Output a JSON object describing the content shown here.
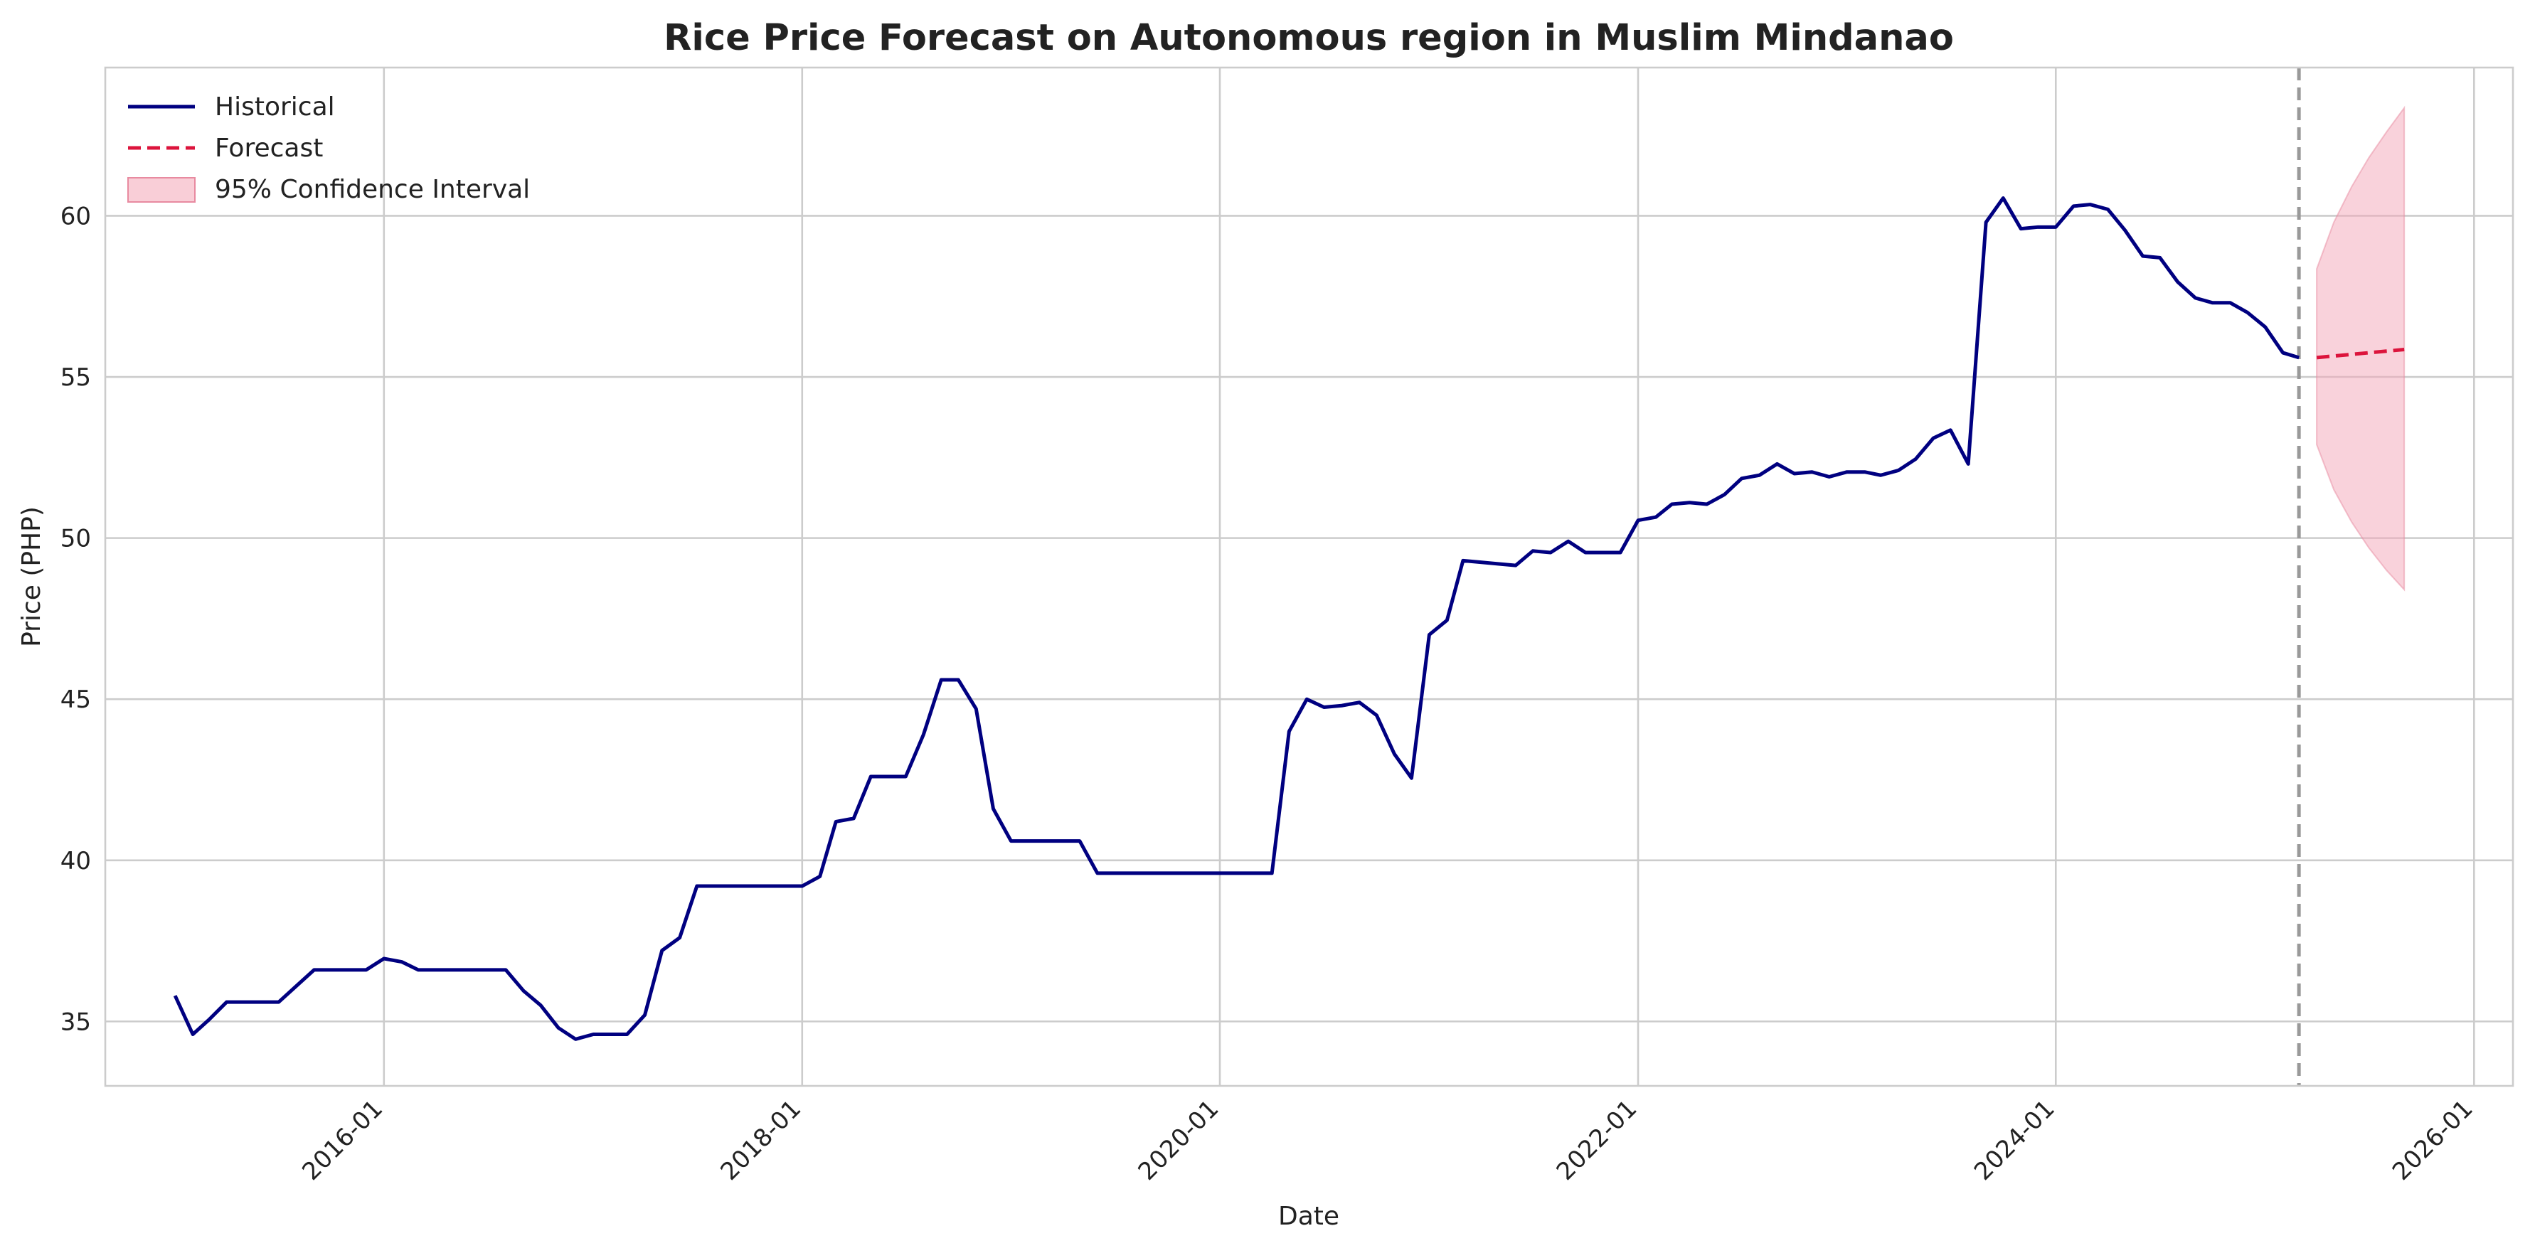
{
  "chart_data": {
    "type": "line",
    "title": "Rice Price Forecast on Autonomous region in Muslim Mindanao",
    "xlabel": "Date",
    "ylabel": "Price (PHP)",
    "xlim": [
      "2014-09-01",
      "2026-03-10"
    ],
    "ylim": [
      33.0,
      64.6
    ],
    "x_ticks": [
      "2016-01",
      "2018-01",
      "2020-01",
      "2022-01",
      "2024-01",
      "2026-01"
    ],
    "y_ticks": [
      35,
      40,
      45,
      50,
      55,
      60
    ],
    "grid": true,
    "legend_position": "top-left",
    "forecast_start": "2025-03-01",
    "colors": {
      "historical": "#000080",
      "forecast": "#dc143c",
      "confidence": "#f4a6b7",
      "divider": "#999999",
      "grid": "#cccccc"
    },
    "series": [
      {
        "name": "Historical",
        "style": "solid",
        "points": [
          [
            "2015-01",
            35.8
          ],
          [
            "2015-02",
            34.6
          ],
          [
            "2015-03",
            35.05
          ],
          [
            "2015-04",
            35.6
          ],
          [
            "2015-05",
            35.6
          ],
          [
            "2015-06",
            35.6
          ],
          [
            "2015-07",
            35.6
          ],
          [
            "2015-08",
            36.1
          ],
          [
            "2015-09",
            36.6
          ],
          [
            "2015-10",
            36.6
          ],
          [
            "2015-11",
            36.6
          ],
          [
            "2015-12",
            36.6
          ],
          [
            "2016-01",
            36.95
          ],
          [
            "2016-02",
            36.85
          ],
          [
            "2016-03",
            36.6
          ],
          [
            "2016-04",
            36.6
          ],
          [
            "2016-05",
            36.6
          ],
          [
            "2016-06",
            36.6
          ],
          [
            "2016-07",
            36.6
          ],
          [
            "2016-08",
            36.6
          ],
          [
            "2016-09",
            35.95
          ],
          [
            "2016-10",
            35.5
          ],
          [
            "2016-11",
            34.8
          ],
          [
            "2016-12",
            34.45
          ],
          [
            "2017-01",
            34.6
          ],
          [
            "2017-02",
            34.6
          ],
          [
            "2017-03",
            34.6
          ],
          [
            "2017-04",
            35.2
          ],
          [
            "2017-05",
            37.2
          ],
          [
            "2017-06",
            37.6
          ],
          [
            "2017-07",
            39.2
          ],
          [
            "2017-08",
            39.2
          ],
          [
            "2017-09",
            39.2
          ],
          [
            "2017-10",
            39.2
          ],
          [
            "2017-11",
            39.2
          ],
          [
            "2017-12",
            39.2
          ],
          [
            "2018-01",
            39.2
          ],
          [
            "2018-02",
            39.5
          ],
          [
            "2018-03",
            41.2
          ],
          [
            "2018-04",
            41.3
          ],
          [
            "2018-05",
            42.6
          ],
          [
            "2018-06",
            42.6
          ],
          [
            "2018-07",
            42.6
          ],
          [
            "2018-08",
            43.9
          ],
          [
            "2018-09",
            45.6
          ],
          [
            "2018-10",
            45.6
          ],
          [
            "2018-11",
            44.7
          ],
          [
            "2018-12",
            41.6
          ],
          [
            "2019-01",
            40.6
          ],
          [
            "2019-02",
            40.6
          ],
          [
            "2019-03",
            40.6
          ],
          [
            "2019-04",
            40.6
          ],
          [
            "2019-05",
            40.6
          ],
          [
            "2019-06",
            39.6
          ],
          [
            "2019-07",
            39.6
          ],
          [
            "2019-08",
            39.6
          ],
          [
            "2019-09",
            39.6
          ],
          [
            "2019-10",
            39.6
          ],
          [
            "2019-11",
            39.6
          ],
          [
            "2019-12",
            39.6
          ],
          [
            "2020-01",
            39.6
          ],
          [
            "2020-02",
            39.6
          ],
          [
            "2020-03",
            39.6
          ],
          [
            "2020-04",
            39.6
          ],
          [
            "2020-05",
            44.0
          ],
          [
            "2020-06",
            45.0
          ],
          [
            "2020-07",
            44.75
          ],
          [
            "2020-08",
            44.8
          ],
          [
            "2020-09",
            44.9
          ],
          [
            "2020-10",
            44.5
          ],
          [
            "2020-11",
            43.3
          ],
          [
            "2020-12",
            42.55
          ],
          [
            "2021-01",
            47.0
          ],
          [
            "2021-02",
            47.45
          ],
          [
            "2021-03",
            49.3
          ],
          [
            "2021-04",
            49.25
          ],
          [
            "2021-05",
            49.2
          ],
          [
            "2021-06",
            49.15
          ],
          [
            "2021-07",
            49.6
          ],
          [
            "2021-08",
            49.55
          ],
          [
            "2021-09",
            49.9
          ],
          [
            "2021-10",
            49.55
          ],
          [
            "2021-11",
            49.55
          ],
          [
            "2021-12",
            49.55
          ],
          [
            "2022-01",
            50.55
          ],
          [
            "2022-02",
            50.65
          ],
          [
            "2022-03",
            51.05
          ],
          [
            "2022-04",
            51.1
          ],
          [
            "2022-05",
            51.05
          ],
          [
            "2022-06",
            51.35
          ],
          [
            "2022-07",
            51.85
          ],
          [
            "2022-08",
            51.95
          ],
          [
            "2022-09",
            52.3
          ],
          [
            "2022-10",
            52.0
          ],
          [
            "2022-11",
            52.05
          ],
          [
            "2022-12",
            51.9
          ],
          [
            "2023-01",
            52.05
          ],
          [
            "2023-02",
            52.05
          ],
          [
            "2023-03",
            51.95
          ],
          [
            "2023-04",
            52.1
          ],
          [
            "2023-05",
            52.45
          ],
          [
            "2023-06",
            53.1
          ],
          [
            "2023-07",
            53.35
          ],
          [
            "2023-08",
            52.3
          ],
          [
            "2023-09",
            59.8
          ],
          [
            "2023-10",
            60.55
          ],
          [
            "2023-11",
            59.6
          ],
          [
            "2023-12",
            59.65
          ],
          [
            "2024-01",
            59.65
          ],
          [
            "2024-02",
            60.3
          ],
          [
            "2024-03",
            60.35
          ],
          [
            "2024-04",
            60.2
          ],
          [
            "2024-05",
            59.55
          ],
          [
            "2024-06",
            58.75
          ],
          [
            "2024-07",
            58.7
          ],
          [
            "2024-08",
            57.95
          ],
          [
            "2024-09",
            57.45
          ],
          [
            "2024-10",
            57.3
          ],
          [
            "2024-11",
            57.3
          ],
          [
            "2024-12",
            57.0
          ],
          [
            "2025-01",
            56.55
          ],
          [
            "2025-02",
            55.75
          ],
          [
            "2025-03",
            55.6
          ]
        ]
      },
      {
        "name": "Forecast",
        "style": "dashed",
        "points": [
          [
            "2025-04",
            55.6
          ],
          [
            "2025-05",
            55.65
          ],
          [
            "2025-06",
            55.7
          ],
          [
            "2025-07",
            55.75
          ],
          [
            "2025-08",
            55.8
          ],
          [
            "2025-09",
            55.85
          ]
        ]
      },
      {
        "name": "95% Confidence Interval",
        "style": "band",
        "points": [
          [
            "2025-04",
            52.9,
            58.35
          ],
          [
            "2025-05",
            51.5,
            59.8
          ],
          [
            "2025-06",
            50.5,
            60.9
          ],
          [
            "2025-07",
            49.7,
            61.8
          ],
          [
            "2025-08",
            49.0,
            62.6
          ],
          [
            "2025-09",
            48.4,
            63.35
          ]
        ]
      }
    ]
  }
}
